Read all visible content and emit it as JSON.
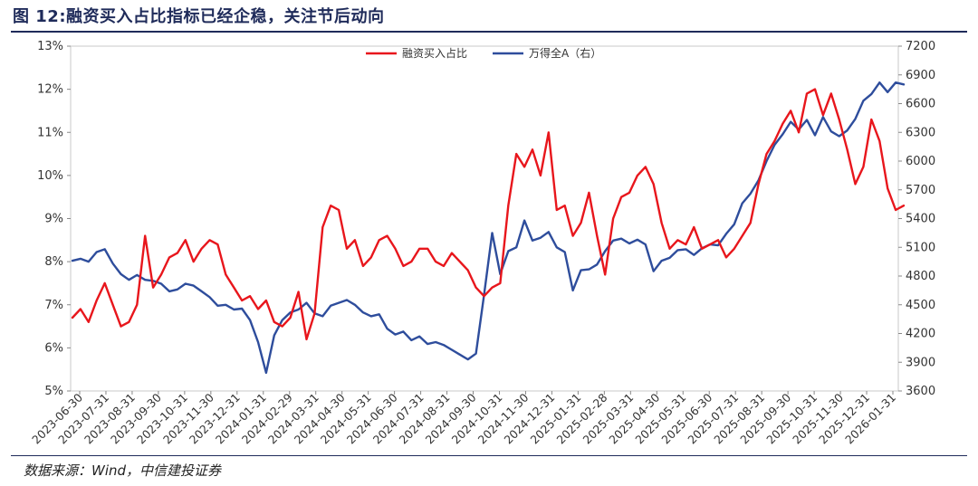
{
  "header": {
    "title": "图 12:融资买入占比指标已经企稳，关注节后动向"
  },
  "footer": {
    "source": "数据来源：Wind，中信建投证券"
  },
  "chart_data": {
    "type": "line",
    "title": "图 12:融资买入占比指标已经企稳，关注节后动向",
    "xlabel": "",
    "ylabel_left": "",
    "ylabel_right": "",
    "x_tick_labels": [
      "2023-06-30",
      "2023-07-31",
      "2023-08-31",
      "2023-09-30",
      "2023-10-31",
      "2023-11-30",
      "2023-12-31",
      "2024-01-31",
      "2024-02-29",
      "2024-03-31",
      "2024-04-30",
      "2024-05-31",
      "2024-06-30",
      "2024-07-31",
      "2024-08-31",
      "2024-09-30",
      "2024-10-31",
      "2024-11-30",
      "2024-12-31",
      "2025-01-31",
      "2025-02-28",
      "2025-03-31",
      "2025-04-30",
      "2025-05-31",
      "2025-06-30",
      "2025-07-31",
      "2025-08-31",
      "2025-09-30",
      "2025-10-31",
      "2025-11-30",
      "2025-12-31",
      "2026-01-31"
    ],
    "y_left": {
      "ticks": [
        "5%",
        "6%",
        "7%",
        "8%",
        "9%",
        "10%",
        "11%",
        "12%",
        "13%"
      ],
      "lim": [
        5,
        13
      ],
      "unit": "%"
    },
    "y_right": {
      "ticks": [
        "3600",
        "3900",
        "4200",
        "4500",
        "4800",
        "5100",
        "5400",
        "5700",
        "6000",
        "6300",
        "6600",
        "6900",
        "7200"
      ],
      "lim": [
        3600,
        7200
      ]
    },
    "legend": {
      "position": "top-center"
    },
    "series": [
      {
        "name": "融资买入占比",
        "axis": "left",
        "color": "#e8161c",
        "values": [
          6.7,
          6.9,
          6.6,
          7.1,
          7.5,
          7.0,
          6.5,
          6.6,
          7.0,
          8.6,
          7.4,
          7.7,
          8.1,
          8.2,
          8.5,
          8.0,
          8.3,
          8.5,
          8.4,
          7.7,
          7.4,
          7.1,
          7.2,
          6.9,
          7.1,
          6.6,
          6.5,
          6.7,
          7.3,
          6.2,
          6.8,
          8.8,
          9.3,
          9.2,
          8.3,
          8.5,
          7.9,
          8.1,
          8.5,
          8.6,
          8.3,
          7.9,
          8.0,
          8.3,
          8.3,
          8.0,
          7.9,
          8.2,
          8.0,
          7.8,
          7.4,
          7.2,
          7.4,
          7.5,
          9.3,
          10.5,
          10.2,
          10.6,
          10.0,
          11.0,
          9.2,
          9.3,
          8.6,
          8.9,
          9.6,
          8.6,
          7.7,
          9.0,
          9.5,
          9.6,
          10.0,
          10.2,
          9.8,
          8.9,
          8.3,
          8.5,
          8.4,
          8.8,
          8.3,
          8.4,
          8.5,
          8.1,
          8.3,
          8.6,
          8.9,
          9.8,
          10.5,
          10.8,
          11.2,
          11.5,
          11.0,
          11.9,
          12.0,
          11.4,
          11.9,
          11.3,
          10.6,
          9.8,
          10.2,
          11.3,
          10.8,
          9.7,
          9.2,
          9.3
        ]
      },
      {
        "name": "万得全A（右）",
        "axis": "right",
        "color": "#2e4d9c",
        "values": [
          4960,
          4980,
          4950,
          5050,
          5080,
          4930,
          4820,
          4760,
          4810,
          4760,
          4750,
          4720,
          4640,
          4660,
          4720,
          4700,
          4640,
          4580,
          4490,
          4500,
          4450,
          4460,
          4340,
          4110,
          3790,
          4180,
          4340,
          4420,
          4450,
          4520,
          4410,
          4380,
          4490,
          4520,
          4550,
          4500,
          4420,
          4380,
          4400,
          4250,
          4190,
          4220,
          4130,
          4170,
          4090,
          4110,
          4080,
          4030,
          3980,
          3930,
          3990,
          4600,
          5250,
          4820,
          5060,
          5100,
          5380,
          5170,
          5200,
          5260,
          5100,
          5050,
          4650,
          4860,
          4870,
          4920,
          5060,
          5170,
          5190,
          5140,
          5180,
          5130,
          4850,
          4960,
          4990,
          5070,
          5080,
          5020,
          5090,
          5130,
          5120,
          5240,
          5340,
          5560,
          5660,
          5800,
          6000,
          6170,
          6280,
          6410,
          6330,
          6430,
          6270,
          6460,
          6310,
          6260,
          6320,
          6440,
          6630,
          6700,
          6820,
          6720,
          6820,
          6800
        ]
      }
    ]
  }
}
